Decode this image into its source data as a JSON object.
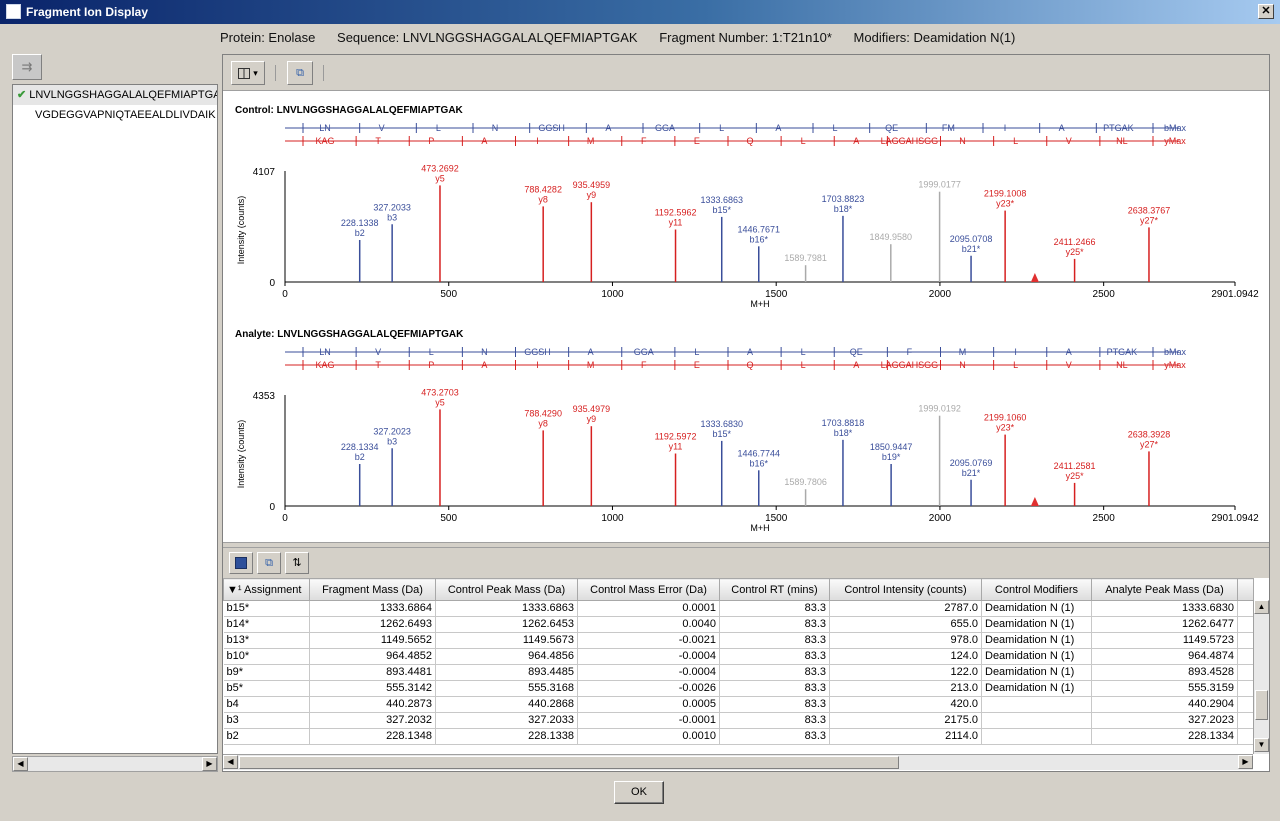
{
  "window": {
    "title": "Fragment Ion Display",
    "close_glyph": "✕"
  },
  "info": {
    "protein": "Protein: Enolase",
    "sequence": "Sequence: LNVLNGGSHAGGALALQEFMIAPTGAK",
    "fragment": "Fragment Number: 1:T21n10*",
    "modifiers": "Modifiers: Deamidation N(1)"
  },
  "left": {
    "sort_icon": "⇉",
    "items": [
      {
        "label": "LNVLNGGSHAGGALALQEFMIAPTGAK",
        "checked": true
      },
      {
        "label": "VGDEGGVAPNIQTAEEALDLIVDAIK",
        "checked": false
      }
    ],
    "check_glyph": "✔"
  },
  "toolbar": {
    "chart_menu_icon": "▾",
    "copy_icon": "⧉"
  },
  "colors": {
    "b_ion": "#3a4e9a",
    "y_ion": "#d62020",
    "unassigned": "#aaaaaa",
    "precursor": "#e03030",
    "green": "#2d9a2d"
  },
  "spectra": [
    {
      "title": "Control: LNVLNGGSHAGGALALQEFMIAPTGAK",
      "ymax": 4107,
      "b_ladder": [
        "LN",
        "V",
        "L",
        "N",
        "GGSH",
        "A",
        "GGA",
        "L",
        "A",
        "L",
        "QE",
        "FM",
        "I",
        "A",
        "PTGAK",
        "bMax"
      ],
      "y_ladder": [
        "KAG",
        "T",
        "P",
        "A",
        "I",
        "M",
        "F",
        "E",
        "Q",
        "L",
        "A",
        "LAGGAHSGG",
        "N",
        "L",
        "V",
        "NL",
        "yMax"
      ],
      "labels": [
        {
          "mz": 473.2692,
          "ion": "y5",
          "type": "y",
          "h": 0.92
        },
        {
          "mz": 788.4282,
          "ion": "y8",
          "type": "y",
          "h": 0.72
        },
        {
          "mz": 935.4959,
          "ion": "y9",
          "type": "y",
          "h": 0.76
        },
        {
          "mz": 1192.5962,
          "ion": "y11",
          "type": "y",
          "h": 0.5
        },
        {
          "mz": 2199.1008,
          "ion": "y23*",
          "type": "y",
          "h": 0.68
        },
        {
          "mz": 2411.2466,
          "ion": "y25*",
          "type": "y",
          "h": 0.22
        },
        {
          "mz": 2638.3767,
          "ion": "y27*",
          "type": "y",
          "h": 0.52
        },
        {
          "mz": 228.1338,
          "ion": "b2",
          "type": "b",
          "h": 0.4
        },
        {
          "mz": 327.2033,
          "ion": "b3",
          "type": "b",
          "h": 0.55
        },
        {
          "mz": 1333.6863,
          "ion": "b15*",
          "type": "b",
          "h": 0.62
        },
        {
          "mz": 1446.7671,
          "ion": "b16*",
          "type": "b",
          "h": 0.34
        },
        {
          "mz": 1703.8823,
          "ion": "b18*",
          "type": "b",
          "h": 0.63
        },
        {
          "mz": 2095.0708,
          "ion": "b21*",
          "type": "b",
          "h": 0.25
        },
        {
          "mz": 1589.7981,
          "ion": "",
          "type": "u",
          "h": 0.16
        },
        {
          "mz": 1849.958,
          "ion": "",
          "type": "u",
          "h": 0.36
        },
        {
          "mz": 1999.0177,
          "ion": "",
          "type": "u",
          "h": 0.86
        }
      ],
      "xticks": [
        "0",
        "500",
        "1000",
        "1500",
        "2000",
        "2500",
        "2901.0942"
      ],
      "xmax": 2901.0942,
      "ylabel": "Intensity (counts)",
      "xlabel": "M+H"
    },
    {
      "title": "Analyte: LNVLNGGSHAGGALALQEFMIAPTGAK",
      "ymax": 4353,
      "b_ladder": [
        "LN",
        "V",
        "L",
        "N",
        "GGSH",
        "A",
        "GGA",
        "L",
        "A",
        "L",
        "QE",
        "F",
        "M",
        "I",
        "A",
        "PTGAK",
        "bMax"
      ],
      "y_ladder": [
        "KAG",
        "T",
        "P",
        "A",
        "I",
        "M",
        "F",
        "E",
        "Q",
        "L",
        "A",
        "LAGGAHSGG",
        "N",
        "L",
        "V",
        "NL",
        "yMax"
      ],
      "labels": [
        {
          "mz": 473.2703,
          "ion": "y5",
          "type": "y",
          "h": 0.92
        },
        {
          "mz": 788.429,
          "ion": "y8",
          "type": "y",
          "h": 0.72
        },
        {
          "mz": 935.4979,
          "ion": "y9",
          "type": "y",
          "h": 0.76
        },
        {
          "mz": 1192.5972,
          "ion": "y11",
          "type": "y",
          "h": 0.5
        },
        {
          "mz": 2199.106,
          "ion": "y23*",
          "type": "y",
          "h": 0.68
        },
        {
          "mz": 2411.2581,
          "ion": "y25*",
          "type": "y",
          "h": 0.22
        },
        {
          "mz": 2638.3928,
          "ion": "y27*",
          "type": "y",
          "h": 0.52
        },
        {
          "mz": 228.1334,
          "ion": "b2",
          "type": "b",
          "h": 0.4
        },
        {
          "mz": 327.2023,
          "ion": "b3",
          "type": "b",
          "h": 0.55
        },
        {
          "mz": 1333.683,
          "ion": "b15*",
          "type": "b",
          "h": 0.62
        },
        {
          "mz": 1446.7744,
          "ion": "b16*",
          "type": "b",
          "h": 0.34
        },
        {
          "mz": 1703.8818,
          "ion": "b18*",
          "type": "b",
          "h": 0.63
        },
        {
          "mz": 1850.9447,
          "ion": "b19*",
          "type": "b",
          "h": 0.4
        },
        {
          "mz": 2095.0769,
          "ion": "b21*",
          "type": "b",
          "h": 0.25
        },
        {
          "mz": 1589.7806,
          "ion": "",
          "type": "u",
          "h": 0.16
        },
        {
          "mz": 1999.0192,
          "ion": "",
          "type": "u",
          "h": 0.86
        }
      ],
      "xticks": [
        "0",
        "500",
        "1000",
        "1500",
        "2000",
        "2500",
        "2901.0942"
      ],
      "xmax": 2901.0942,
      "ylabel": "Intensity (counts)",
      "xlabel": "M+H"
    }
  ],
  "table_toolbar": {
    "save_icon": "💾",
    "copy_icon": "⧉",
    "columns_icon": "⇅"
  },
  "table": {
    "headers": [
      "▼¹ Assignment",
      "Fragment Mass (Da)",
      "Control Peak Mass (Da)",
      "Control Mass Error (Da)",
      "Control RT (mins)",
      "Control Intensity (counts)",
      "Control Modifiers",
      "Analyte Peak Mass (Da)"
    ],
    "rows": [
      [
        "b15*",
        "1333.6864",
        "1333.6863",
        "0.0001",
        "83.3",
        "2787.0",
        "Deamidation N (1)",
        "1333.6830"
      ],
      [
        "b14*",
        "1262.6493",
        "1262.6453",
        "0.0040",
        "83.3",
        "655.0",
        "Deamidation N (1)",
        "1262.6477"
      ],
      [
        "b13*",
        "1149.5652",
        "1149.5673",
        "-0.0021",
        "83.3",
        "978.0",
        "Deamidation N (1)",
        "1149.5723"
      ],
      [
        "b10*",
        "964.4852",
        "964.4856",
        "-0.0004",
        "83.3",
        "124.0",
        "Deamidation N (1)",
        "964.4874"
      ],
      [
        "b9*",
        "893.4481",
        "893.4485",
        "-0.0004",
        "83.3",
        "122.0",
        "Deamidation N (1)",
        "893.4528"
      ],
      [
        "b5*",
        "555.3142",
        "555.3168",
        "-0.0026",
        "83.3",
        "213.0",
        "Deamidation N (1)",
        "555.3159"
      ],
      [
        "b4",
        "440.2873",
        "440.2868",
        "0.0005",
        "83.3",
        "420.0",
        "",
        "440.2904"
      ],
      [
        "b3",
        "327.2032",
        "327.2033",
        "-0.0001",
        "83.3",
        "2175.0",
        "",
        "327.2023"
      ],
      [
        "b2",
        "228.1348",
        "228.1338",
        "0.0010",
        "83.3",
        "2114.0",
        "",
        "228.1334"
      ]
    ]
  },
  "footer": {
    "ok_label": "OK"
  }
}
